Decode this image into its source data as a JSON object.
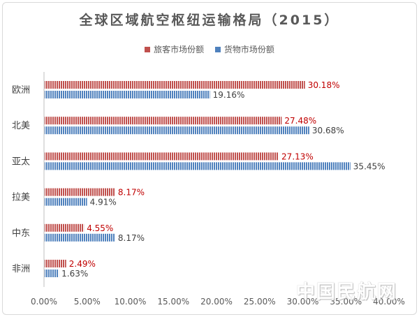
{
  "chart_data": {
    "type": "bar",
    "orientation": "horizontal",
    "title": "全球区域航空枢纽运输格局（2015）",
    "categories": [
      "欧洲",
      "北美",
      "亚太",
      "拉美",
      "中东",
      "非洲"
    ],
    "series": [
      {
        "name": "旅客市场份额",
        "values": [
          30.18,
          27.48,
          27.13,
          8.17,
          4.55,
          2.49
        ],
        "labels": [
          "30.18%",
          "27.48%",
          "27.13%",
          "8.17%",
          "4.55%",
          "2.49%"
        ],
        "color": "#c0504d"
      },
      {
        "name": "货物市场份额",
        "values": [
          19.16,
          30.68,
          35.45,
          4.91,
          8.17,
          1.63
        ],
        "labels": [
          "19.16%",
          "30.68%",
          "35.45%",
          "4.91%",
          "8.17%",
          "1.63%"
        ],
        "color": "#4f81bd"
      }
    ],
    "xlim": [
      0,
      40
    ],
    "xticks": [
      "0.00%",
      "5.00%",
      "10.00%",
      "15.00%",
      "20.00%",
      "25.00%",
      "30.00%",
      "35.00%",
      "40.00%"
    ],
    "grid": false,
    "legend_position": "top"
  },
  "watermark": "中国民航网"
}
